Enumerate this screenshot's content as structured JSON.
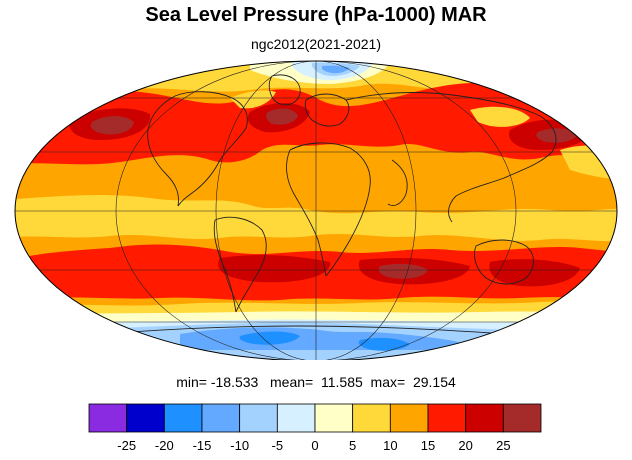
{
  "title": "Sea Level Pressure (hPa-1000) MAR",
  "subtitle": "ngc2012(2021-2021)",
  "stats": {
    "min_label": "min=",
    "min": "-18.533",
    "mean_label": "mean=",
    "mean": "11.585",
    "max_label": "max=",
    "max": "29.154"
  },
  "colorbar": {
    "colors": [
      "#8a2be2",
      "#0000cd",
      "#1e90ff",
      "#63a9ff",
      "#a4d2ff",
      "#d6f0ff",
      "#ffffc8",
      "#ffd83a",
      "#ffa500",
      "#ff1a00",
      "#cd0000",
      "#a52a2a"
    ],
    "ticks": [
      "-25",
      "-20",
      "-15",
      "-10",
      "-5",
      "0",
      "5",
      "10",
      "15",
      "20",
      "25"
    ]
  },
  "map_colors": {
    "base": "#ffa500",
    "high": "#ff1a00",
    "very_high": "#cd0000",
    "extreme": "#a52a2a",
    "moderate": "#ffd83a",
    "low": "#ffffc8",
    "lower": "#d6f0ff",
    "cold": "#a4d2ff",
    "colder": "#63a9ff",
    "coldest": "#1e90ff"
  }
}
